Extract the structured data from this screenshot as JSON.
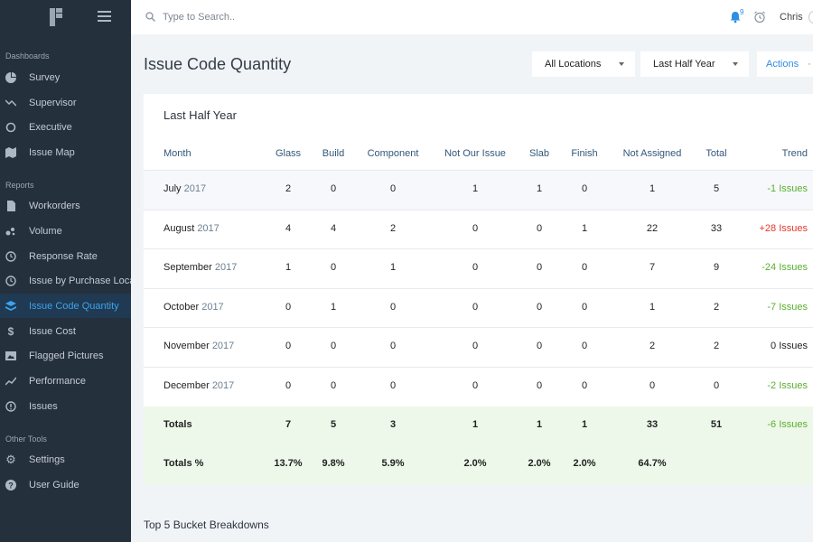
{
  "sidebar": {
    "sections": {
      "dashboards": "Dashboards",
      "reports": "Reports",
      "other_tools": "Other Tools"
    },
    "items": [
      {
        "label": "Survey",
        "icon": "pie-chart-icon"
      },
      {
        "label": "Supervisor",
        "icon": "trend-icon"
      },
      {
        "label": "Executive",
        "icon": "circle-icon"
      },
      {
        "label": "Issue Map",
        "icon": "map-icon"
      },
      {
        "label": "Workorders",
        "icon": "document-icon"
      },
      {
        "label": "Volume",
        "icon": "scatter-icon"
      },
      {
        "label": "Response Rate",
        "icon": "clock-icon"
      },
      {
        "label": "Issue by Purchase Location",
        "icon": "clock-icon"
      },
      {
        "label": "Issue Code Quantity",
        "icon": "layers-icon"
      },
      {
        "label": "Issue Cost",
        "icon": "dollar-icon"
      },
      {
        "label": "Flagged Pictures",
        "icon": "image-icon"
      },
      {
        "label": "Performance",
        "icon": "trend-up-icon"
      },
      {
        "label": "Issues",
        "icon": "info-icon"
      },
      {
        "label": "Settings",
        "icon": "gear-icon"
      },
      {
        "label": "User Guide",
        "icon": "help-icon"
      }
    ]
  },
  "topbar": {
    "search_placeholder": "Type to Search..",
    "notification_count": "9",
    "user_name": "Chris"
  },
  "header": {
    "title": "Issue Code Quantity",
    "location_filter": "All Locations",
    "period_filter": "Last Half Year",
    "actions_label": "Actions",
    "actions_dots": "···"
  },
  "card": {
    "title": "Last Half Year",
    "columns": [
      "Month",
      "Glass",
      "Build",
      "Component",
      "Not Our Issue",
      "Slab",
      "Finish",
      "Not Assigned",
      "Total",
      "Trend"
    ],
    "rows": [
      {
        "month": "July",
        "year": "2017",
        "values": [
          "2",
          "0",
          "0",
          "1",
          "1",
          "0",
          "1",
          "5"
        ],
        "trend": "-1 Issues",
        "trend_type": "pos"
      },
      {
        "month": "August",
        "year": "2017",
        "values": [
          "4",
          "4",
          "2",
          "0",
          "0",
          "1",
          "22",
          "33"
        ],
        "trend": "+28 Issues",
        "trend_type": "neg"
      },
      {
        "month": "September",
        "year": "2017",
        "values": [
          "1",
          "0",
          "1",
          "0",
          "0",
          "0",
          "7",
          "9"
        ],
        "trend": "-24 Issues",
        "trend_type": "pos"
      },
      {
        "month": "October",
        "year": "2017",
        "values": [
          "0",
          "1",
          "0",
          "0",
          "0",
          "0",
          "1",
          "2"
        ],
        "trend": "-7 Issues",
        "trend_type": "pos"
      },
      {
        "month": "November",
        "year": "2017",
        "values": [
          "0",
          "0",
          "0",
          "0",
          "0",
          "0",
          "2",
          "2"
        ],
        "trend": "0 Issues",
        "trend_type": "zero"
      },
      {
        "month": "December",
        "year": "2017",
        "values": [
          "0",
          "0",
          "0",
          "0",
          "0",
          "0",
          "0",
          "0"
        ],
        "trend": "-2 Issues",
        "trend_type": "pos"
      }
    ],
    "totals": {
      "label": "Totals",
      "values": [
        "7",
        "5",
        "3",
        "1",
        "1",
        "1",
        "33",
        "51"
      ],
      "trend": "-6 Issues"
    },
    "totals_pct": {
      "label": "Totals %",
      "values": [
        "13.7%",
        "9.8%",
        "5.9%",
        "2.0%",
        "2.0%",
        "2.0%",
        "64.7%"
      ]
    }
  },
  "section2_title": "Top 5 Bucket Breakdowns",
  "colors": {
    "sidebar_bg": "#25303d",
    "accent": "#3ea2f0",
    "trend_positive": "#5aae2f",
    "trend_negative": "#e2372b",
    "totals_bg": "#eef8ea"
  }
}
